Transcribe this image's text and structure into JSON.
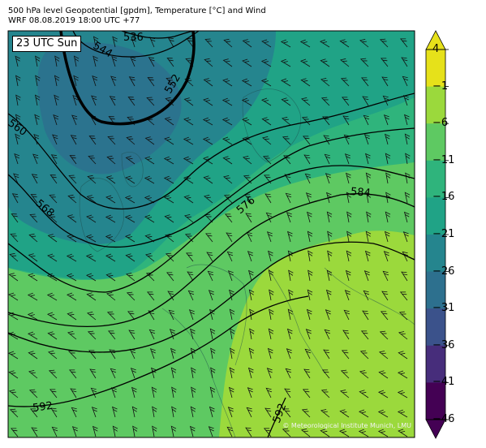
{
  "header": {
    "line1": "500 hPa level Geopotential [gpdm], Temperature [°C] and Wind",
    "line2": "WRF 08.08.2019 18:00 UTC +77"
  },
  "time_label": "23 UTC Sun",
  "copyright": "© Meteorological Institute Munich, LMU",
  "colorbar": {
    "ticks": [
      "4",
      "−1",
      "−6",
      "−11",
      "−16",
      "−21",
      "−26",
      "−31",
      "−36",
      "−41",
      "−46"
    ],
    "colors": [
      "#e6e11a",
      "#9bd93c",
      "#5ec962",
      "#2fb47c",
      "#20a386",
      "#25858e",
      "#2d708e",
      "#3b528b",
      "#472d7b",
      "#440154"
    ]
  },
  "contour_labels": [
    "536",
    "544",
    "552",
    "560",
    "568",
    "576",
    "584",
    "592",
    "592"
  ]
}
